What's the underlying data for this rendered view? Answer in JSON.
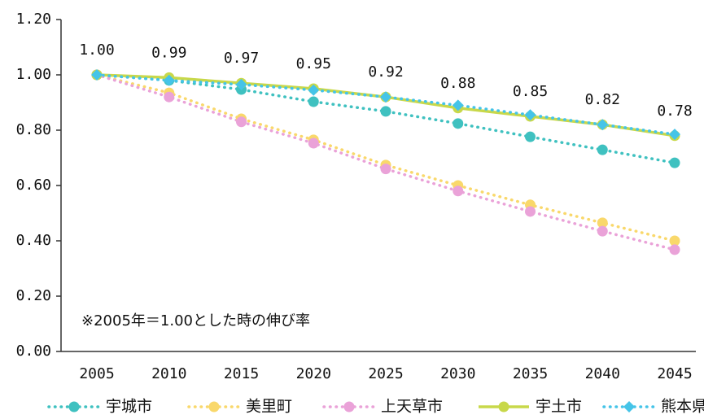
{
  "chart_data": {
    "type": "line",
    "annotation": "※2005年＝1.00とした時の伸び率",
    "categories": [
      "2005",
      "2010",
      "2015",
      "2020",
      "2025",
      "2030",
      "2035",
      "2040",
      "2045"
    ],
    "series": [
      {
        "name": "宇城市",
        "color": "#3fc1c0",
        "style": "dotted",
        "marker": "circle",
        "values": [
          1.0,
          0.98,
          0.947,
          0.903,
          0.868,
          0.824,
          0.776,
          0.729,
          0.682
        ]
      },
      {
        "name": "美里町",
        "color": "#f9d86b",
        "style": "dotted",
        "marker": "circle",
        "values": [
          1.0,
          0.935,
          0.841,
          0.765,
          0.674,
          0.6,
          0.53,
          0.465,
          0.4
        ]
      },
      {
        "name": "上天草市",
        "color": "#eaa2d8",
        "style": "dotted",
        "marker": "circle",
        "values": [
          1.0,
          0.92,
          0.83,
          0.753,
          0.66,
          0.58,
          0.506,
          0.435,
          0.368
        ]
      },
      {
        "name": "宇土市",
        "color": "#c8d84a",
        "style": "solid",
        "marker": "circle",
        "values": [
          1.0,
          0.99,
          0.97,
          0.95,
          0.92,
          0.88,
          0.85,
          0.82,
          0.78
        ],
        "value_labels": [
          "1.00",
          "0.99",
          "0.97",
          "0.95",
          "0.92",
          "0.88",
          "0.85",
          "0.82",
          "0.78"
        ]
      },
      {
        "name": "熊本県",
        "color": "#45c4e8",
        "style": "dotted",
        "marker": "diamond",
        "values": [
          1.0,
          0.98,
          0.965,
          0.945,
          0.92,
          0.89,
          0.855,
          0.82,
          0.785
        ]
      }
    ],
    "ylim": [
      0,
      1.2
    ],
    "yticks": [
      {
        "value": 0,
        "label": "0.00"
      },
      {
        "value": 0.2,
        "label": "0.20"
      },
      {
        "value": 0.4,
        "label": "0.40"
      },
      {
        "value": 0.6,
        "label": "0.60"
      },
      {
        "value": 0.8,
        "label": "0.80"
      },
      {
        "value": 1.0,
        "label": "1.00"
      },
      {
        "value": 1.2,
        "label": "1.20"
      }
    ],
    "legend": "bottom"
  }
}
